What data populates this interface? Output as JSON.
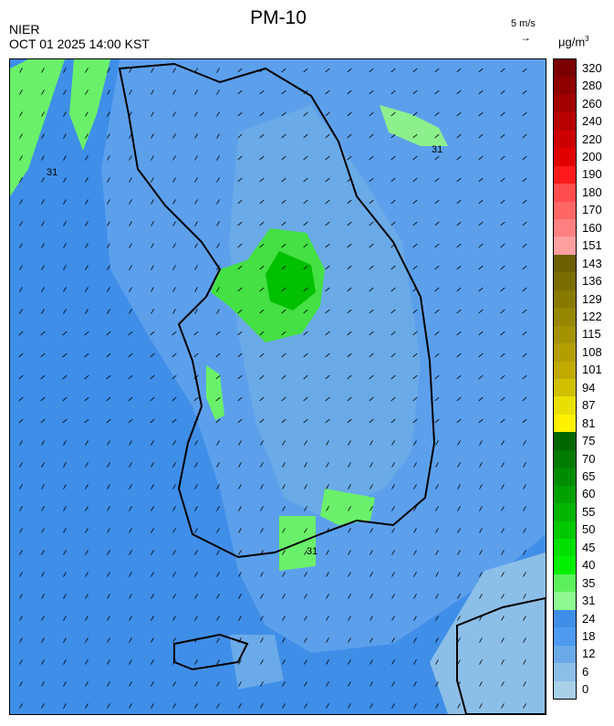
{
  "header": {
    "agency": "NIER",
    "datetime": "OCT 01 2025 14:00 KST",
    "title": "PM-10",
    "wind_reference": "5 m/s",
    "wind_arrow": "→",
    "unit": "μg/m",
    "unit_sup": "3"
  },
  "map": {
    "contour_labels": [
      "31",
      "31",
      "31"
    ]
  },
  "colorbar": {
    "labels": [
      "320",
      "280",
      "260",
      "240",
      "220",
      "200",
      "190",
      "180",
      "170",
      "160",
      "151",
      "143",
      "136",
      "129",
      "122",
      "115",
      "108",
      "101",
      "94",
      "87",
      "81",
      "75",
      "70",
      "65",
      "60",
      "55",
      "50",
      "45",
      "40",
      "35",
      "31",
      "24",
      "18",
      "12",
      "6",
      "0"
    ],
    "colors": [
      "#7a0000",
      "#8f0000",
      "#a30000",
      "#b80000",
      "#cc0000",
      "#e00000",
      "#ff1a1a",
      "#ff4d4d",
      "#ff6666",
      "#ff8080",
      "#ffa0a0",
      "#6b6000",
      "#7a6e00",
      "#887a00",
      "#968600",
      "#a49200",
      "#b29e00",
      "#c0aa00",
      "#d0c000",
      "#e8e000",
      "#fff200",
      "#006600",
      "#007a00",
      "#008c00",
      "#00a000",
      "#00b400",
      "#00c800",
      "#00e000",
      "#00f000",
      "#5cf05c",
      "#90f890",
      "#3f8ee8",
      "#4d9af0",
      "#6aaae8",
      "#8cbfe8",
      "#a8d0e8"
    ]
  }
}
